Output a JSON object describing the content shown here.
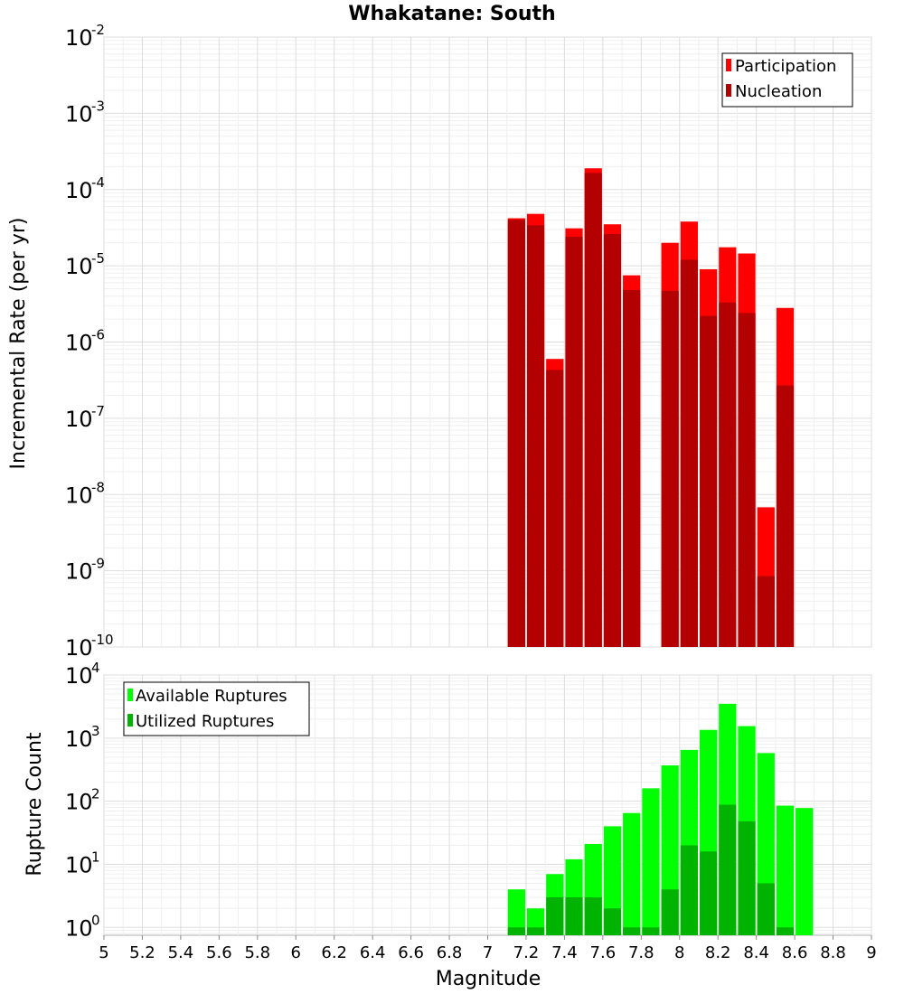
{
  "chart_data": [
    {
      "type": "bar",
      "title": "Whakatane: South",
      "xlabel": "",
      "ylabel": "Incremental Rate (per yr)",
      "yscale": "log",
      "ylim": [
        1e-10,
        0.01
      ],
      "xlim": [
        5,
        9
      ],
      "grid": true,
      "legend_position": "top-right",
      "overlaid": true,
      "x": [
        7.15,
        7.25,
        7.35,
        7.45,
        7.55,
        7.65,
        7.75,
        7.85,
        7.95,
        8.05,
        8.15,
        8.25,
        8.35,
        8.45,
        8.55
      ],
      "series": [
        {
          "name": "Participation",
          "color": "#ff0000",
          "values": [
            4.2e-05,
            4.8e-05,
            6e-07,
            3.1e-05,
            0.00019,
            3.5e-05,
            7.5e-06,
            null,
            2e-05,
            3.8e-05,
            9e-06,
            1.75e-05,
            1.45e-05,
            6.8e-09,
            2.8e-06
          ]
        },
        {
          "name": "Nucleation",
          "color": "#b30000",
          "values": [
            4e-05,
            3.4e-05,
            4.3e-07,
            2.4e-05,
            0.000165,
            2.6e-05,
            4.8e-06,
            null,
            4.7e-06,
            1.2e-05,
            2.2e-06,
            3.3e-06,
            2.4e-06,
            8.5e-10,
            2.7e-07
          ]
        }
      ]
    },
    {
      "type": "bar",
      "title": "",
      "xlabel": "Magnitude",
      "ylabel": "Rupture Count",
      "yscale": "log",
      "ylim": [
        0.75,
        10000
      ],
      "xlim": [
        5,
        9
      ],
      "grid": true,
      "legend_position": "top-left",
      "overlaid": true,
      "x": [
        7.15,
        7.25,
        7.35,
        7.45,
        7.55,
        7.65,
        7.75,
        7.85,
        7.95,
        8.05,
        8.15,
        8.25,
        8.35,
        8.45,
        8.55,
        8.65
      ],
      "series": [
        {
          "name": "Available Ruptures",
          "color": "#00ff00",
          "values": [
            4,
            2,
            7,
            12,
            21,
            40,
            65,
            160,
            370,
            650,
            1350,
            3500,
            1550,
            580,
            85,
            78
          ]
        },
        {
          "name": "Utilized Ruptures",
          "color": "#00b300",
          "values": [
            1,
            1,
            3,
            3,
            3,
            2,
            1,
            1,
            4,
            20,
            16,
            88,
            48,
            5,
            1,
            null
          ]
        }
      ]
    }
  ],
  "x_ticks": [
    "5",
    "5.2",
    "5.4",
    "5.6",
    "5.8",
    "6",
    "6.2",
    "6.4",
    "6.6",
    "6.8",
    "7",
    "7.2",
    "7.4",
    "7.6",
    "7.8",
    "8",
    "8.2",
    "8.4",
    "8.6",
    "8.8",
    "9"
  ],
  "top_y_ticks": [
    {
      "base": "10",
      "exp": "-2"
    },
    {
      "base": "10",
      "exp": "-3"
    },
    {
      "base": "10",
      "exp": "-4"
    },
    {
      "base": "10",
      "exp": "-5"
    },
    {
      "base": "10",
      "exp": "-6"
    },
    {
      "base": "10",
      "exp": "-7"
    },
    {
      "base": "10",
      "exp": "-8"
    },
    {
      "base": "10",
      "exp": "-9"
    },
    {
      "base": "10",
      "exp": "-10"
    }
  ],
  "bottom_y_ticks": [
    {
      "base": "10",
      "exp": "4"
    },
    {
      "base": "10",
      "exp": "3"
    },
    {
      "base": "10",
      "exp": "2"
    },
    {
      "base": "10",
      "exp": "1"
    },
    {
      "base": "10",
      "exp": "0"
    }
  ]
}
